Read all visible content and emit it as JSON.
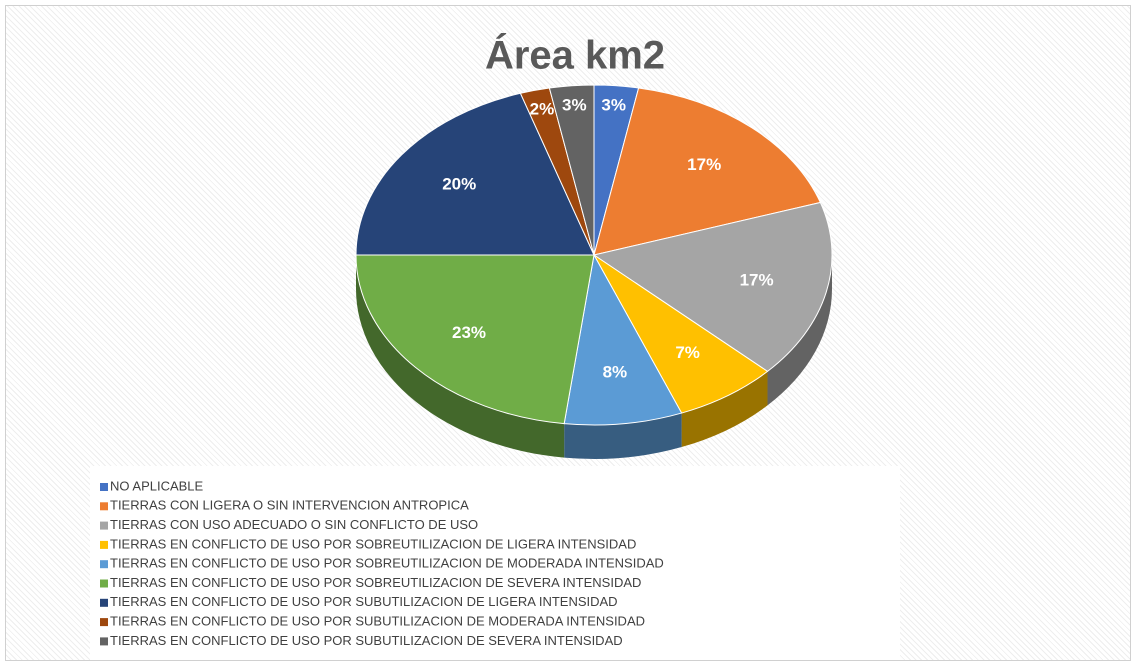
{
  "chart_data": {
    "type": "pie",
    "title": "Área km2",
    "categories": [
      "NO APLICABLE",
      "TIERRAS CON LIGERA O SIN INTERVENCION ANTROPICA",
      "TIERRAS CON USO ADECUADO O SIN CONFLICTO DE USO",
      "TIERRAS EN CONFLICTO DE USO POR SOBREUTILIZACION DE LIGERA INTENSIDAD",
      "TIERRAS EN CONFLICTO DE USO POR SOBREUTILIZACION DE MODERADA INTENSIDAD",
      "TIERRAS EN CONFLICTO DE USO POR SOBREUTILIZACION DE SEVERA INTENSIDAD",
      "TIERRAS EN CONFLICTO DE USO POR SUBUTILIZACION DE LIGERA INTENSIDAD",
      "TIERRAS EN CONFLICTO DE USO POR SUBUTILIZACION DE MODERADA INTENSIDAD",
      "TIERRAS EN CONFLICTO DE USO POR SUBUTILIZACION DE SEVERA INTENSIDAD"
    ],
    "values": [
      3,
      17,
      17,
      7,
      8,
      23,
      20,
      2,
      3
    ],
    "value_labels": [
      "3%",
      "17%",
      "17%",
      "7%",
      "8%",
      "23%",
      "20%",
      "2%",
      "3%"
    ],
    "colors": [
      "#4472c4",
      "#ed7d31",
      "#a5a5a5",
      "#ffc000",
      "#5b9bd5",
      "#70ad47",
      "#264478",
      "#9e480e",
      "#636363"
    ],
    "legend": "bottom-left"
  }
}
